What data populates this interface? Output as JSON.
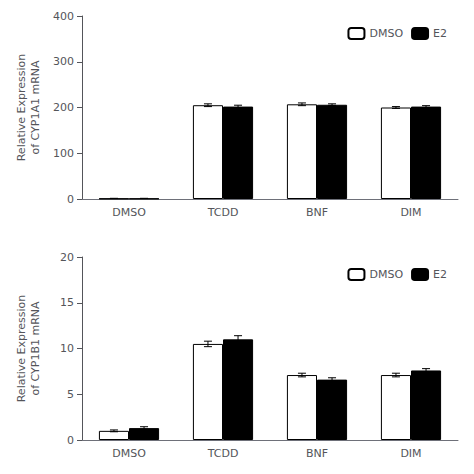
{
  "chart_data": [
    {
      "type": "bar",
      "categories": [
        "DMSO",
        "TCDD",
        "BNF",
        "DIM"
      ],
      "ylabel": "Relative Expression\nof CYP1A1 mRNA",
      "series": [
        {
          "name": "DMSO",
          "color": "white",
          "values": [
            1,
            205,
            207,
            200
          ],
          "errors": [
            0.5,
            3,
            3,
            2
          ]
        },
        {
          "name": "E2",
          "color": "black",
          "values": [
            1,
            202,
            206,
            202
          ],
          "errors": [
            0.5,
            3,
            2,
            2
          ]
        }
      ],
      "ylim": [
        0,
        400
      ],
      "yticks": [
        0,
        100,
        200,
        300,
        400
      ],
      "grid": false,
      "legend": "upper right"
    },
    {
      "type": "bar",
      "categories": [
        "DMSO",
        "TCDD",
        "BNF",
        "DIM"
      ],
      "ylabel": "Relative Expression\nof CYP1B1 mRNA",
      "series": [
        {
          "name": "DMSO",
          "color": "white",
          "values": [
            1.0,
            10.5,
            7.1,
            7.1
          ],
          "errors": [
            0.1,
            0.3,
            0.2,
            0.2
          ]
        },
        {
          "name": "E2",
          "color": "black",
          "values": [
            1.3,
            11.0,
            6.6,
            7.6
          ],
          "errors": [
            0.15,
            0.4,
            0.2,
            0.2
          ]
        }
      ],
      "ylim": [
        0,
        20
      ],
      "yticks": [
        0,
        5,
        10,
        15,
        20
      ],
      "grid": false,
      "legend": "upper right"
    }
  ]
}
